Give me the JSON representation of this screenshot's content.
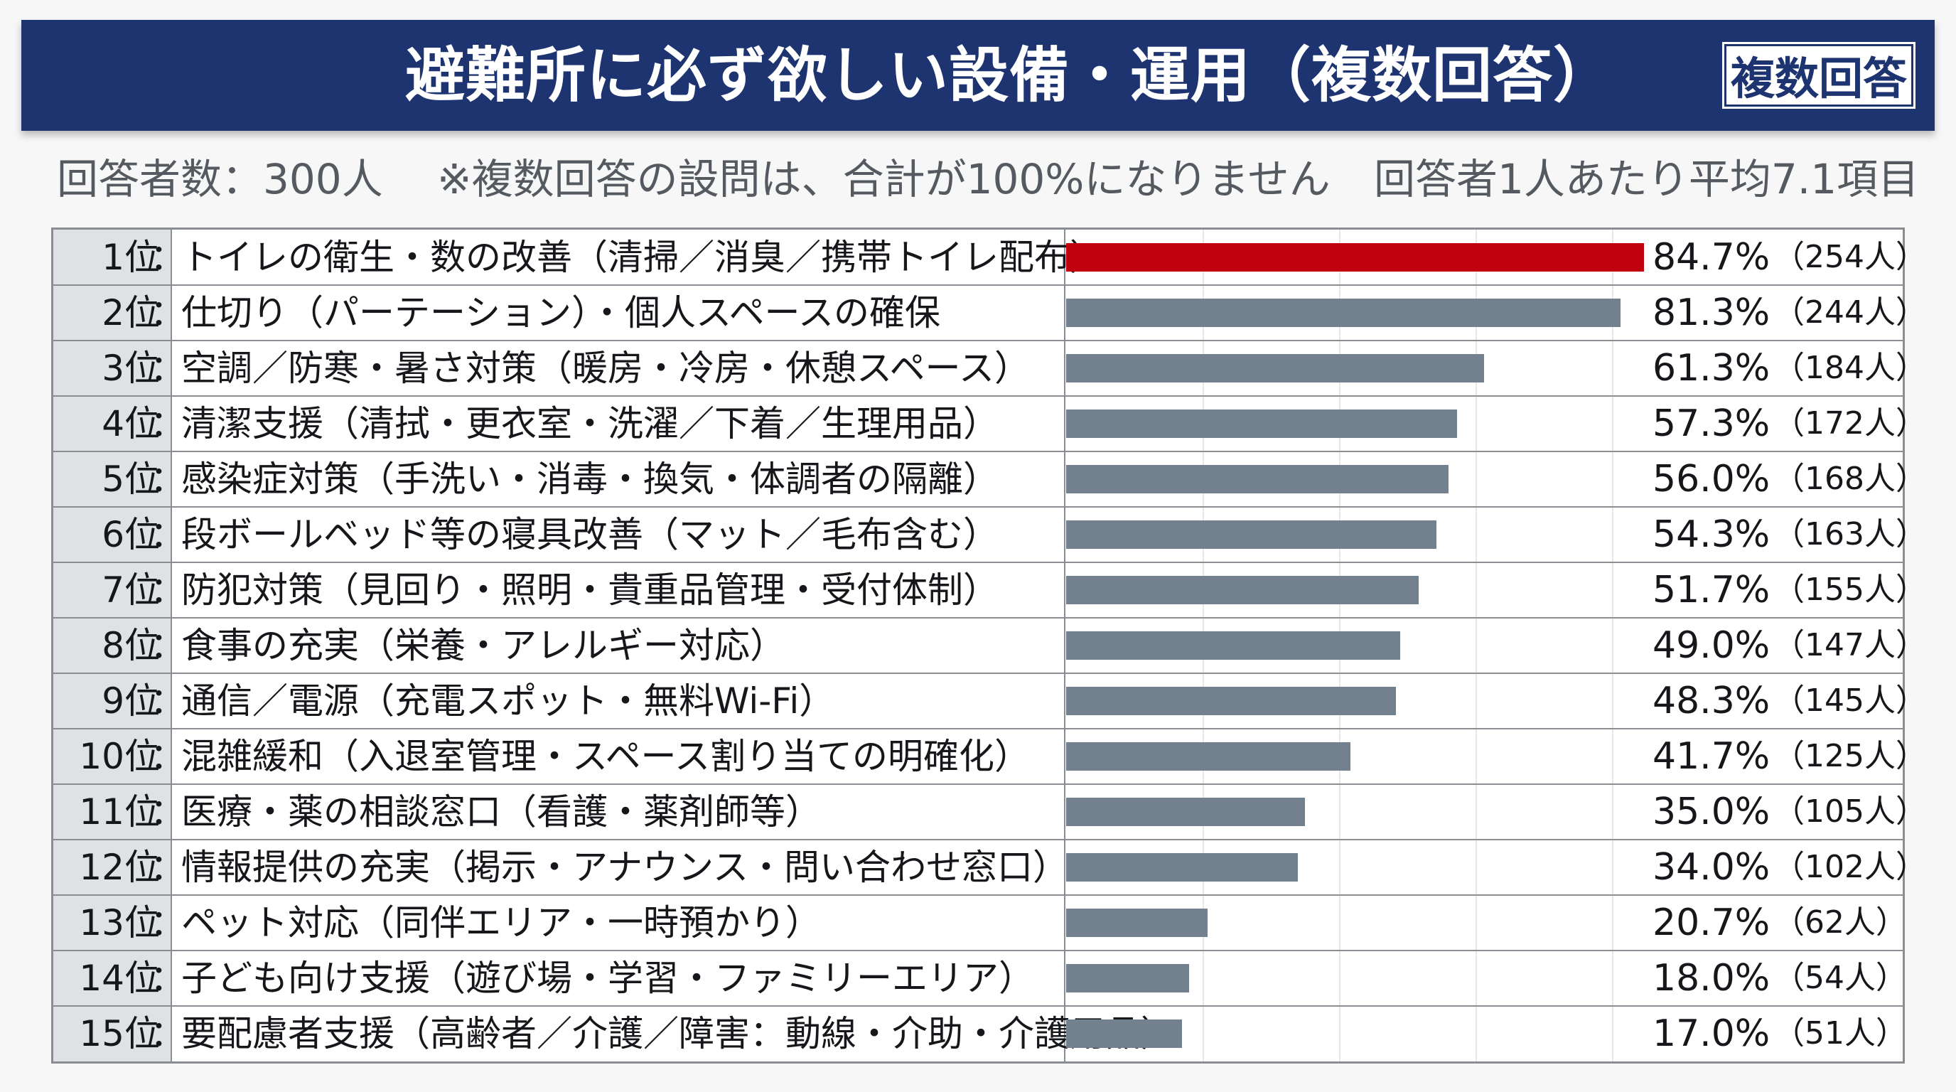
{
  "header": {
    "title": "避難所に必ず欲しい設備・運用（複数回答）",
    "badge": "複数回答"
  },
  "subtitle": {
    "respondents": "回答者数：300人",
    "note": "※複数回答の設問は、合計が100%になりません",
    "average": "回答者1人あたり平均7.1項目"
  },
  "colors": {
    "highlight": "#c0000c",
    "bar": "#73808e",
    "header": "#1d3470"
  },
  "chart_data": {
    "type": "bar",
    "orientation": "horizontal",
    "title": "避難所に必ず欲しい設備・運用（複数回答）",
    "xlim": [
      0,
      100
    ],
    "rows": [
      {
        "rank": "1位",
        "label": "トイレの衛生・数の改善（清掃／消臭／携帯トイレ配布）",
        "value": 84.7,
        "pct": "84.7%",
        "count": "（254人）"
      },
      {
        "rank": "2位",
        "label": "仕切り（パーテーション）・個人スペースの確保",
        "value": 81.3,
        "pct": "81.3%",
        "count": "（244人）"
      },
      {
        "rank": "3位",
        "label": "空調／防寒・暑さ対策（暖房・冷房・休憩スペース）",
        "value": 61.3,
        "pct": "61.3%",
        "count": "（184人）"
      },
      {
        "rank": "4位",
        "label": "清潔支援（清拭・更衣室・洗濯／下着／生理用品）",
        "value": 57.3,
        "pct": "57.3%",
        "count": "（172人）"
      },
      {
        "rank": "5位",
        "label": "感染症対策（手洗い・消毒・換気・体調者の隔離）",
        "value": 56.0,
        "pct": "56.0%",
        "count": "（168人）"
      },
      {
        "rank": "6位",
        "label": "段ボールベッド等の寝具改善（マット／毛布含む）",
        "value": 54.3,
        "pct": "54.3%",
        "count": "（163人）"
      },
      {
        "rank": "7位",
        "label": "防犯対策（見回り・照明・貴重品管理・受付体制）",
        "value": 51.7,
        "pct": "51.7%",
        "count": "（155人）"
      },
      {
        "rank": "8位",
        "label": "食事の充実（栄養・アレルギー対応）",
        "value": 49.0,
        "pct": "49.0%",
        "count": "（147人）"
      },
      {
        "rank": "9位",
        "label": "通信／電源（充電スポット・無料Wi-Fi）",
        "value": 48.3,
        "pct": "48.3%",
        "count": "（145人）"
      },
      {
        "rank": "10位",
        "label": "混雑緩和（入退室管理・スペース割り当ての明確化）",
        "value": 41.7,
        "pct": "41.7%",
        "count": "（125人）"
      },
      {
        "rank": "11位",
        "label": "医療・薬の相談窓口（看護・薬剤師等）",
        "value": 35.0,
        "pct": "35.0%",
        "count": "（105人）"
      },
      {
        "rank": "12位",
        "label": "情報提供の充実（掲示・アナウンス・問い合わせ窓口）",
        "value": 34.0,
        "pct": "34.0%",
        "count": "（102人）"
      },
      {
        "rank": "13位",
        "label": "ペット対応（同伴エリア・一時預かり）",
        "value": 20.7,
        "pct": "20.7%",
        "count": "（62人）"
      },
      {
        "rank": "14位",
        "label": "子ども向け支援（遊び場・学習・ファミリーエリア）",
        "value": 18.0,
        "pct": "18.0%",
        "count": "（54人）"
      },
      {
        "rank": "15位",
        "label": "要配慮者支援（高齢者／介護／障害：動線・介助・介護用品）",
        "value": 17.0,
        "pct": "17.0%",
        "count": "（51人）"
      }
    ]
  }
}
